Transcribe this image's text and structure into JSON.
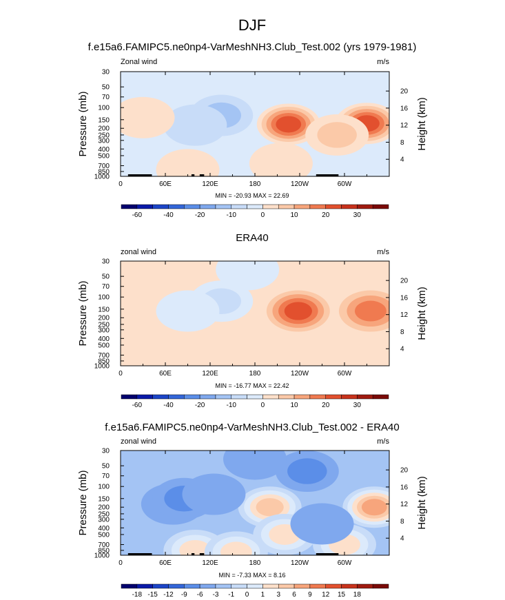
{
  "figure": {
    "title": "DJF"
  },
  "chart_data": [
    {
      "type": "heatmap",
      "title": "f.e15a6.FAMIPC5.ne0np4-VarMeshNH3.Club_Test.002 (yrs 1979-1981)",
      "left_label": "Zonal wind",
      "right_label": "m/s",
      "ylabel": "Pressure (mb)",
      "y2label": "Height (km)",
      "x_ticks": [
        "0",
        "60E",
        "120E",
        "180",
        "120W",
        "60W"
      ],
      "x_tick_lon": [
        0,
        60,
        120,
        180,
        240,
        300
      ],
      "xlim": [
        0,
        360
      ],
      "y_ticks": [
        "30",
        "50",
        "70",
        "100",
        "150",
        "200",
        "250",
        "300",
        "400",
        "500",
        "700",
        "850",
        "1000"
      ],
      "y_tick_p": [
        30,
        50,
        70,
        100,
        150,
        200,
        250,
        300,
        400,
        500,
        700,
        850,
        1000
      ],
      "ylim": [
        1000,
        30
      ],
      "y2_ticks": [
        "4",
        "8",
        "12",
        "16",
        "20"
      ],
      "y2_tick_km": [
        4,
        8,
        12,
        16,
        20
      ],
      "min_max_text": "MIN = -20.93  MAX = 22.69",
      "colorbar_labels": [
        "-60",
        "-40",
        "-20",
        "-10",
        "0",
        "10",
        "20",
        "30"
      ],
      "colorbar_levels": [
        -70,
        -60,
        -50,
        -40,
        -30,
        -20,
        -15,
        -10,
        -5,
        0,
        5,
        10,
        15,
        20,
        25,
        30,
        35
      ],
      "features": [
        {
          "lon": 135,
          "p": 130,
          "value": -10
        },
        {
          "lon": 100,
          "p": 180,
          "value": -6
        },
        {
          "lon": 30,
          "p": 140,
          "value": 3
        },
        {
          "lon": 225,
          "p": 175,
          "value": 21
        },
        {
          "lon": 330,
          "p": 170,
          "value": 22
        },
        {
          "lon": 90,
          "p": 800,
          "value": 4
        },
        {
          "lon": 215,
          "p": 650,
          "value": 3
        },
        {
          "lon": 290,
          "p": 250,
          "value": 6
        },
        {
          "lon": 170,
          "p": 40,
          "value": -3
        }
      ]
    },
    {
      "type": "heatmap",
      "title": "ERA40",
      "left_label": "zonal wind",
      "right_label": "m/s",
      "ylabel": "Pressure (mb)",
      "y2label": "Height (km)",
      "x_ticks": [
        "0",
        "60E",
        "120E",
        "180",
        "120W",
        "60W"
      ],
      "x_tick_lon": [
        0,
        60,
        120,
        180,
        240,
        300
      ],
      "xlim": [
        0,
        360
      ],
      "y_ticks": [
        "30",
        "50",
        "70",
        "100",
        "150",
        "200",
        "250",
        "300",
        "400",
        "500",
        "700",
        "850",
        "1000"
      ],
      "y_tick_p": [
        30,
        50,
        70,
        100,
        150,
        200,
        250,
        300,
        400,
        500,
        700,
        850,
        1000
      ],
      "ylim": [
        1000,
        30
      ],
      "y2_ticks": [
        "4",
        "8",
        "12",
        "16",
        "20"
      ],
      "y2_tick_km": [
        4,
        8,
        12,
        16,
        20
      ],
      "min_max_text": "MIN = -16.77  MAX = 22.42",
      "colorbar_labels": [
        "-60",
        "-40",
        "-20",
        "-10",
        "0",
        "10",
        "20",
        "30"
      ],
      "colorbar_levels": [
        -70,
        -60,
        -50,
        -40,
        -30,
        -20,
        -15,
        -10,
        -5,
        0,
        5,
        10,
        15,
        20,
        25,
        30,
        35
      ],
      "features": [
        {
          "lon": 135,
          "p": 115,
          "value": -9
        },
        {
          "lon": 90,
          "p": 160,
          "value": -4
        },
        {
          "lon": 238,
          "p": 160,
          "value": 22
        },
        {
          "lon": 335,
          "p": 160,
          "value": 15
        },
        {
          "lon": 100,
          "p": 850,
          "value": 3
        },
        {
          "lon": 220,
          "p": 700,
          "value": 2
        },
        {
          "lon": 170,
          "p": 40,
          "value": -2
        }
      ]
    },
    {
      "type": "heatmap",
      "title": "f.e15a6.FAMIPC5.ne0np4-VarMeshNH3.Club_Test.002 - ERA40",
      "left_label": "zonal wind",
      "right_label": "m/s",
      "ylabel": "Pressure (mb)",
      "y2label": "Height (km)",
      "x_ticks": [
        "0",
        "60E",
        "120E",
        "180",
        "120W",
        "60W"
      ],
      "x_tick_lon": [
        0,
        60,
        120,
        180,
        240,
        300
      ],
      "xlim": [
        0,
        360
      ],
      "y_ticks": [
        "30",
        "50",
        "70",
        "100",
        "150",
        "200",
        "250",
        "300",
        "400",
        "500",
        "700",
        "850",
        "1000"
      ],
      "y_tick_p": [
        30,
        50,
        70,
        100,
        150,
        200,
        250,
        300,
        400,
        500,
        700,
        850,
        1000
      ],
      "ylim": [
        1000,
        30
      ],
      "y2_ticks": [
        "4",
        "8",
        "12",
        "16",
        "20"
      ],
      "y2_tick_km": [
        4,
        8,
        12,
        16,
        20
      ],
      "min_max_text": "MIN = -7.33  MAX = 8.16",
      "colorbar_labels": [
        "-18",
        "-15",
        "-12",
        "-9",
        "-6",
        "-3",
        "-1",
        "0",
        "1",
        "3",
        "6",
        "9",
        "12",
        "15",
        "18"
      ],
      "colorbar_levels": [
        -21,
        -18,
        -15,
        -12,
        -9,
        -6,
        -3,
        -1,
        0,
        1,
        3,
        6,
        9,
        12,
        15,
        18,
        21
      ],
      "features": [
        {
          "lon": 200,
          "p": 200,
          "value": 3
        },
        {
          "lon": 220,
          "p": 500,
          "value": 2
        },
        {
          "lon": 340,
          "p": 200,
          "value": 8
        },
        {
          "lon": 300,
          "p": 700,
          "value": 1
        },
        {
          "lon": 70,
          "p": 180,
          "value": -4
        },
        {
          "lon": 85,
          "p": 150,
          "value": -7
        },
        {
          "lon": 125,
          "p": 130,
          "value": -5
        },
        {
          "lon": 250,
          "p": 60,
          "value": -7
        },
        {
          "lon": 270,
          "p": 350,
          "value": -4
        },
        {
          "lon": 30,
          "p": 300,
          "value": -2
        },
        {
          "lon": 100,
          "p": 850,
          "value": 1
        },
        {
          "lon": 155,
          "p": 900,
          "value": 1
        },
        {
          "lon": 180,
          "p": 40,
          "value": -3
        }
      ]
    }
  ]
}
